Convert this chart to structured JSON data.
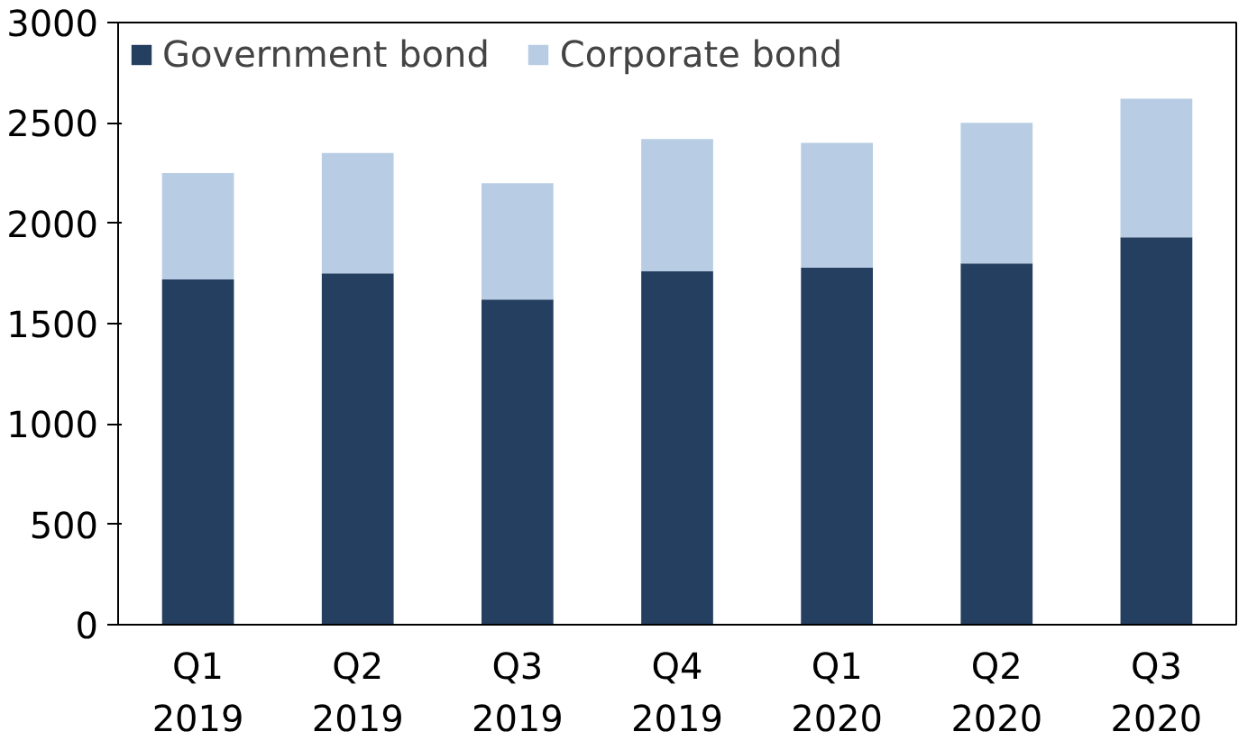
{
  "chart_data": {
    "type": "bar",
    "stacked": true,
    "categories": [
      "Q1\n2019",
      "Q2\n2019",
      "Q3\n2019",
      "Q4\n2019",
      "Q1\n2020",
      "Q2\n2020",
      "Q3\n2020"
    ],
    "series": [
      {
        "name": "Government bond",
        "color": "#243f60",
        "values": [
          1720,
          1750,
          1620,
          1760,
          1780,
          1800,
          1930
        ]
      },
      {
        "name": "Corporate bond",
        "color": "#b8cce4",
        "values": [
          530,
          600,
          580,
          660,
          620,
          700,
          690
        ]
      }
    ],
    "ylim": [
      0,
      3000
    ],
    "yticks": [
      0,
      500,
      1000,
      1500,
      2000,
      2500,
      3000
    ],
    "grid": false,
    "legend": "top left"
  }
}
